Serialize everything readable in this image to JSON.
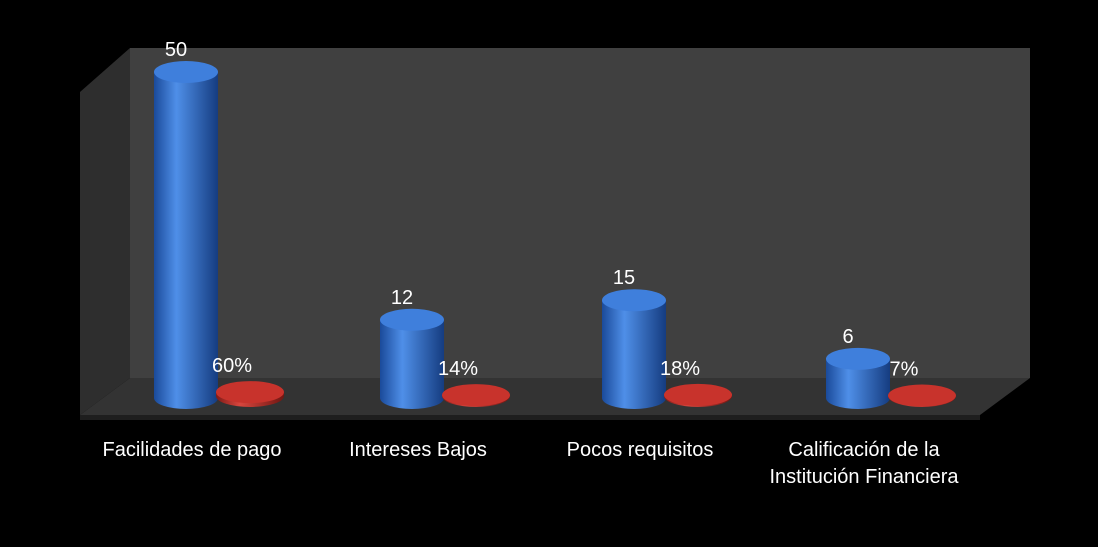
{
  "chart_data": {
    "type": "bar3d",
    "categories": [
      "Facilidades de pago",
      "Intereses Bajos",
      "Pocos requisitos",
      "Calificación de la Institución Financiera"
    ],
    "series": [
      {
        "color": "#2f6fd0",
        "values": [
          50,
          12,
          15,
          6
        ]
      },
      {
        "color": "#c0302a",
        "values": [
          0.6,
          0.14,
          0.18,
          0.07
        ],
        "value_labels": [
          "60%",
          "14%",
          "18%",
          "7%"
        ]
      }
    ],
    "ylim": [
      0,
      50
    ]
  }
}
